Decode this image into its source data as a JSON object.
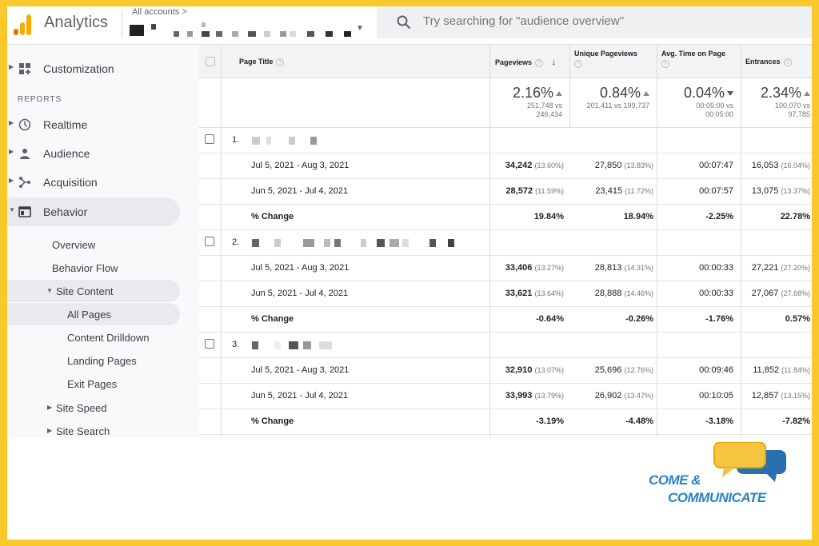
{
  "topbar": {
    "app_title": "Analytics",
    "account_crumb": "All accounts >",
    "search_placeholder": "Try searching for \"audience overview\""
  },
  "sidebar": {
    "customization": "Customization",
    "reports_label": "REPORTS",
    "items": [
      {
        "label": "Realtime",
        "icon": "clock-icon"
      },
      {
        "label": "Audience",
        "icon": "person-icon"
      },
      {
        "label": "Acquisition",
        "icon": "branch-icon"
      },
      {
        "label": "Behavior",
        "icon": "window-icon"
      }
    ],
    "behavior_sub": {
      "overview": "Overview",
      "behavior_flow": "Behavior Flow",
      "site_content": "Site Content",
      "all_pages": "All Pages",
      "content_drilldown": "Content Drilldown",
      "landing_pages": "Landing Pages",
      "exit_pages": "Exit Pages",
      "site_speed": "Site Speed",
      "site_search": "Site Search"
    }
  },
  "table": {
    "headers": {
      "page_title": "Page Title",
      "pageviews": "Pageviews",
      "unique_pageviews": "Unique Pageviews",
      "avg_time": "Avg. Time on Page",
      "entrances": "Entrances"
    },
    "totals": {
      "pageviews": {
        "pct": "2.16%",
        "a": "251,748 vs",
        "b": "246,434"
      },
      "unique": {
        "pct": "0.84%",
        "a": "201,411 vs 199,737",
        "b": ""
      },
      "avg_time": {
        "pct": "0.04%",
        "a": "00:05:00 vs",
        "b": "00:05:00"
      },
      "entrances": {
        "pct": "2.34%",
        "a": "100,070 vs",
        "b": "97,785"
      }
    },
    "groups": [
      {
        "index": "1.",
        "rows": [
          {
            "date": "Jul 5, 2021 - Aug 3, 2021",
            "pv": "34,242",
            "pv_s": "(13.60%)",
            "upv": "27,850",
            "upv_s": "(13.83%)",
            "time": "00:07:47",
            "ent": "16,053",
            "ent_s": "(16.04%)"
          },
          {
            "date": "Jun 5, 2021 - Jul 4, 2021",
            "pv": "28,572",
            "pv_s": "(11.59%)",
            "upv": "23,415",
            "upv_s": "(11.72%)",
            "time": "00:07:57",
            "ent": "13,075",
            "ent_s": "(13.37%)"
          }
        ],
        "change": {
          "label": "% Change",
          "pv": "19.84%",
          "upv": "18.94%",
          "time": "-2.25%",
          "ent": "22.78%"
        }
      },
      {
        "index": "2.",
        "rows": [
          {
            "date": "Jul 5, 2021 - Aug 3, 2021",
            "pv": "33,406",
            "pv_s": "(13.27%)",
            "upv": "28,813",
            "upv_s": "(14.31%)",
            "time": "00:00:33",
            "ent": "27,221",
            "ent_s": "(27.20%)"
          },
          {
            "date": "Jun 5, 2021 - Jul 4, 2021",
            "pv": "33,621",
            "pv_s": "(13.64%)",
            "upv": "28,888",
            "upv_s": "(14.46%)",
            "time": "00:00:33",
            "ent": "27,067",
            "ent_s": "(27.68%)"
          }
        ],
        "change": {
          "label": "% Change",
          "pv": "-0.64%",
          "upv": "-0.26%",
          "time": "-1.76%",
          "ent": "0.57%"
        }
      },
      {
        "index": "3.",
        "rows": [
          {
            "date": "Jul 5, 2021 - Aug 3, 2021",
            "pv": "32,910",
            "pv_s": "(13.07%)",
            "upv": "25,696",
            "upv_s": "(12.76%)",
            "time": "00:09:46",
            "ent": "11,852",
            "ent_s": "(11.84%)"
          },
          {
            "date": "Jun 5, 2021 - Jul 4, 2021",
            "pv": "33,993",
            "pv_s": "(13.79%)",
            "upv": "26,902",
            "upv_s": "(13.47%)",
            "time": "00:10:05",
            "ent": "12,857",
            "ent_s": "(13.15%)"
          }
        ],
        "change": {
          "label": "% Change",
          "pv": "-3.19%",
          "upv": "-4.48%",
          "time": "-3.18%",
          "ent": "-7.82%"
        }
      }
    ]
  },
  "brand": {
    "line1": "COME &",
    "line2": "COMMUNICATE"
  },
  "colors": {
    "accent_orange": "#f9ab00",
    "accent_yellow": "#fbc02d",
    "brand_blue": "#2a82c4",
    "frame_yellow": "#f9c92c"
  }
}
